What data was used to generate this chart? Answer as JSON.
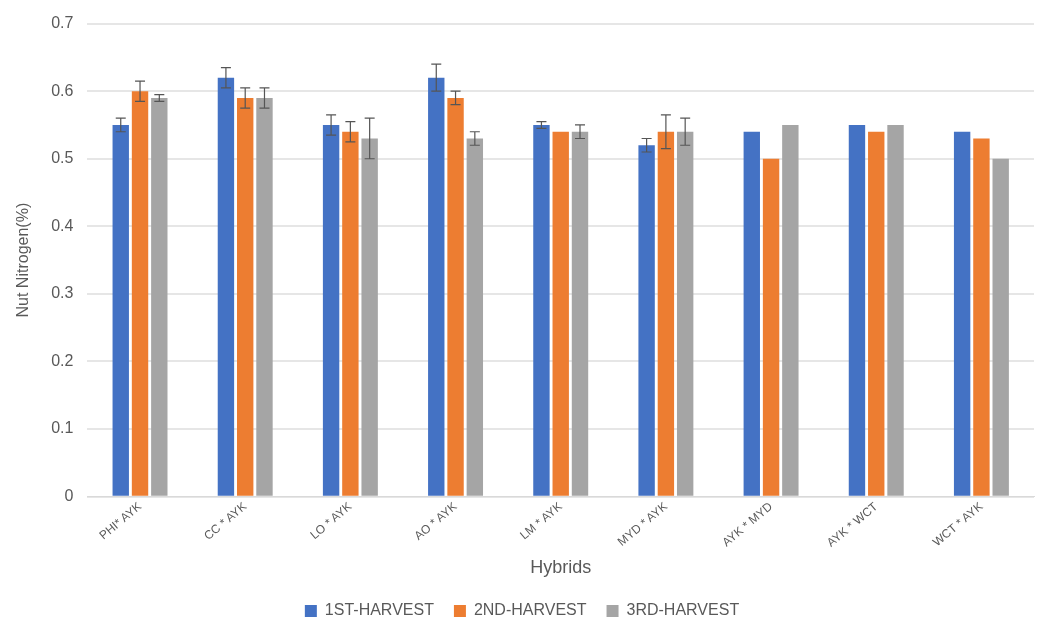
{
  "chart_data": {
    "type": "bar",
    "xlabel": "Hybrids",
    "ylabel": "Nut Nitrogen(%)",
    "categories": [
      "PHI* AYK",
      "CC * AYK",
      "LO * AYK",
      "AO * AYK",
      "LM * AYK",
      "MYD * AYK",
      "AYK * MYD",
      "AYK * WCT",
      "WCT * AYK"
    ],
    "series": [
      {
        "name": "1ST-HARVEST",
        "color": "#4472c4",
        "values": [
          0.55,
          0.62,
          0.55,
          0.62,
          0.55,
          0.52,
          0.54,
          0.55,
          0.54
        ],
        "errors": [
          0.01,
          0.015,
          0.015,
          0.02,
          0.005,
          0.01,
          null,
          null,
          null
        ]
      },
      {
        "name": "2ND-HARVEST",
        "color": "#ed7d31",
        "values": [
          0.6,
          0.59,
          0.54,
          0.59,
          0.54,
          0.54,
          0.5,
          0.54,
          0.53
        ],
        "errors": [
          0.015,
          0.015,
          0.015,
          0.01,
          null,
          0.025,
          null,
          null,
          null
        ]
      },
      {
        "name": "3RD-HARVEST",
        "color": "#a5a5a5",
        "values": [
          0.59,
          0.59,
          0.53,
          0.53,
          0.54,
          0.54,
          0.55,
          0.55,
          0.5
        ],
        "errors": [
          0.005,
          0.015,
          0.03,
          0.01,
          0.01,
          0.02,
          null,
          null,
          null
        ]
      }
    ],
    "ylim": [
      0,
      0.7
    ],
    "yticks": [
      0,
      0.1,
      0.2,
      0.3,
      0.4,
      0.5,
      0.6,
      0.7
    ],
    "grid": "y",
    "legend": "bottom"
  }
}
